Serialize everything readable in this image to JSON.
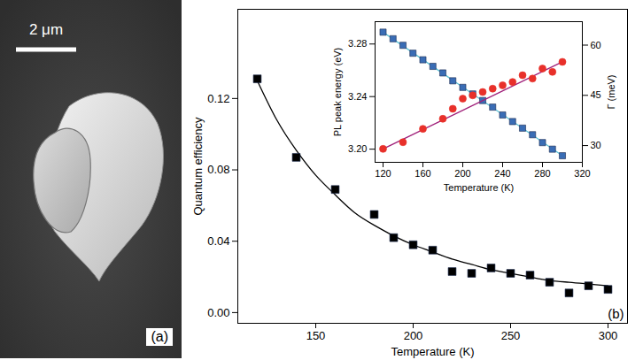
{
  "image_panel": {
    "panel_label": "(a)",
    "scale_bar": "2 μm"
  },
  "chart_data": [
    {
      "type": "scatter",
      "panel_label": "(b)",
      "xlabel": "Temperature (K)",
      "ylabel": "Quantum efficiency",
      "xlim": [
        110,
        310
      ],
      "xticks": [
        150,
        200,
        250,
        300
      ],
      "ylim": [
        -0.006,
        0.17
      ],
      "yticks": [
        {
          "value": 0,
          "label": "0.00"
        },
        0.04,
        0.08,
        0.12
      ],
      "series": [
        {
          "type": "line",
          "color": "#000000",
          "line_style": "solid",
          "x": [
            120,
            130,
            140,
            150,
            160,
            170,
            180,
            190,
            200,
            210,
            220,
            230,
            240,
            250,
            260,
            270,
            280,
            290,
            300
          ],
          "values": [
            0.13,
            0.108,
            0.091,
            0.077,
            0.066,
            0.056,
            0.049,
            0.043,
            0.038,
            0.034,
            0.03,
            0.027,
            0.024,
            0.022,
            0.02,
            0.018,
            0.017,
            0.016,
            0.015
          ]
        },
        {
          "type": "scatter",
          "color": "#000000",
          "marker": "square",
          "x": [
            120,
            140,
            160,
            180,
            190,
            200,
            210,
            220,
            230,
            240,
            250,
            260,
            270,
            280,
            290,
            300
          ],
          "values": [
            0.131,
            0.087,
            0.069,
            0.055,
            0.042,
            0.038,
            0.035,
            0.023,
            0.022,
            0.025,
            0.022,
            0.021,
            0.017,
            0.011,
            0.015,
            0.013
          ]
        }
      ]
    },
    {
      "type": "scatter",
      "xlabel": "Temperature (K)",
      "ylabel": "PL peak energy (eV)",
      "y2label": "Γ (meV)",
      "xlim": [
        112,
        320
      ],
      "xticks": [
        120,
        160,
        200,
        240,
        280,
        320
      ],
      "ylim": [
        3.19,
        3.297
      ],
      "yticks": [
        {
          "value": 3.2,
          "label": "3.20"
        },
        3.24,
        3.28
      ],
      "y2lim": [
        25,
        67
      ],
      "y2ticks": [
        30,
        45,
        60
      ],
      "series": [
        {
          "type": "line",
          "color": "#5fc4d8",
          "line_style": "solid",
          "x": [
            120,
            300
          ],
          "values": [
            3.289,
            3.195
          ]
        },
        {
          "type": "scatter",
          "color": "#3a6db5",
          "marker": "square",
          "x": [
            120,
            130,
            140,
            150,
            160,
            170,
            180,
            190,
            200,
            210,
            220,
            230,
            240,
            250,
            260,
            270,
            280,
            290,
            300
          ],
          "values": [
            3.289,
            3.284,
            3.279,
            3.273,
            3.268,
            3.263,
            3.258,
            3.252,
            3.247,
            3.242,
            3.237,
            3.232,
            3.226,
            3.221,
            3.216,
            3.211,
            3.205,
            3.2,
            3.195
          ]
        },
        {
          "type": "line",
          "color": "#a0207a",
          "line_style": "solid",
          "axis": "y2",
          "x": [
            120,
            300
          ],
          "values": [
            29,
            55
          ]
        },
        {
          "type": "scatter",
          "color": "#e8302a",
          "marker": "circle",
          "axis": "y2",
          "x": [
            120,
            140,
            160,
            180,
            190,
            200,
            210,
            220,
            230,
            240,
            250,
            260,
            270,
            280,
            290,
            300
          ],
          "values": [
            29,
            31,
            35,
            38,
            41,
            44,
            45,
            46,
            47,
            48,
            49,
            51,
            50,
            53,
            52,
            55
          ]
        }
      ]
    }
  ]
}
